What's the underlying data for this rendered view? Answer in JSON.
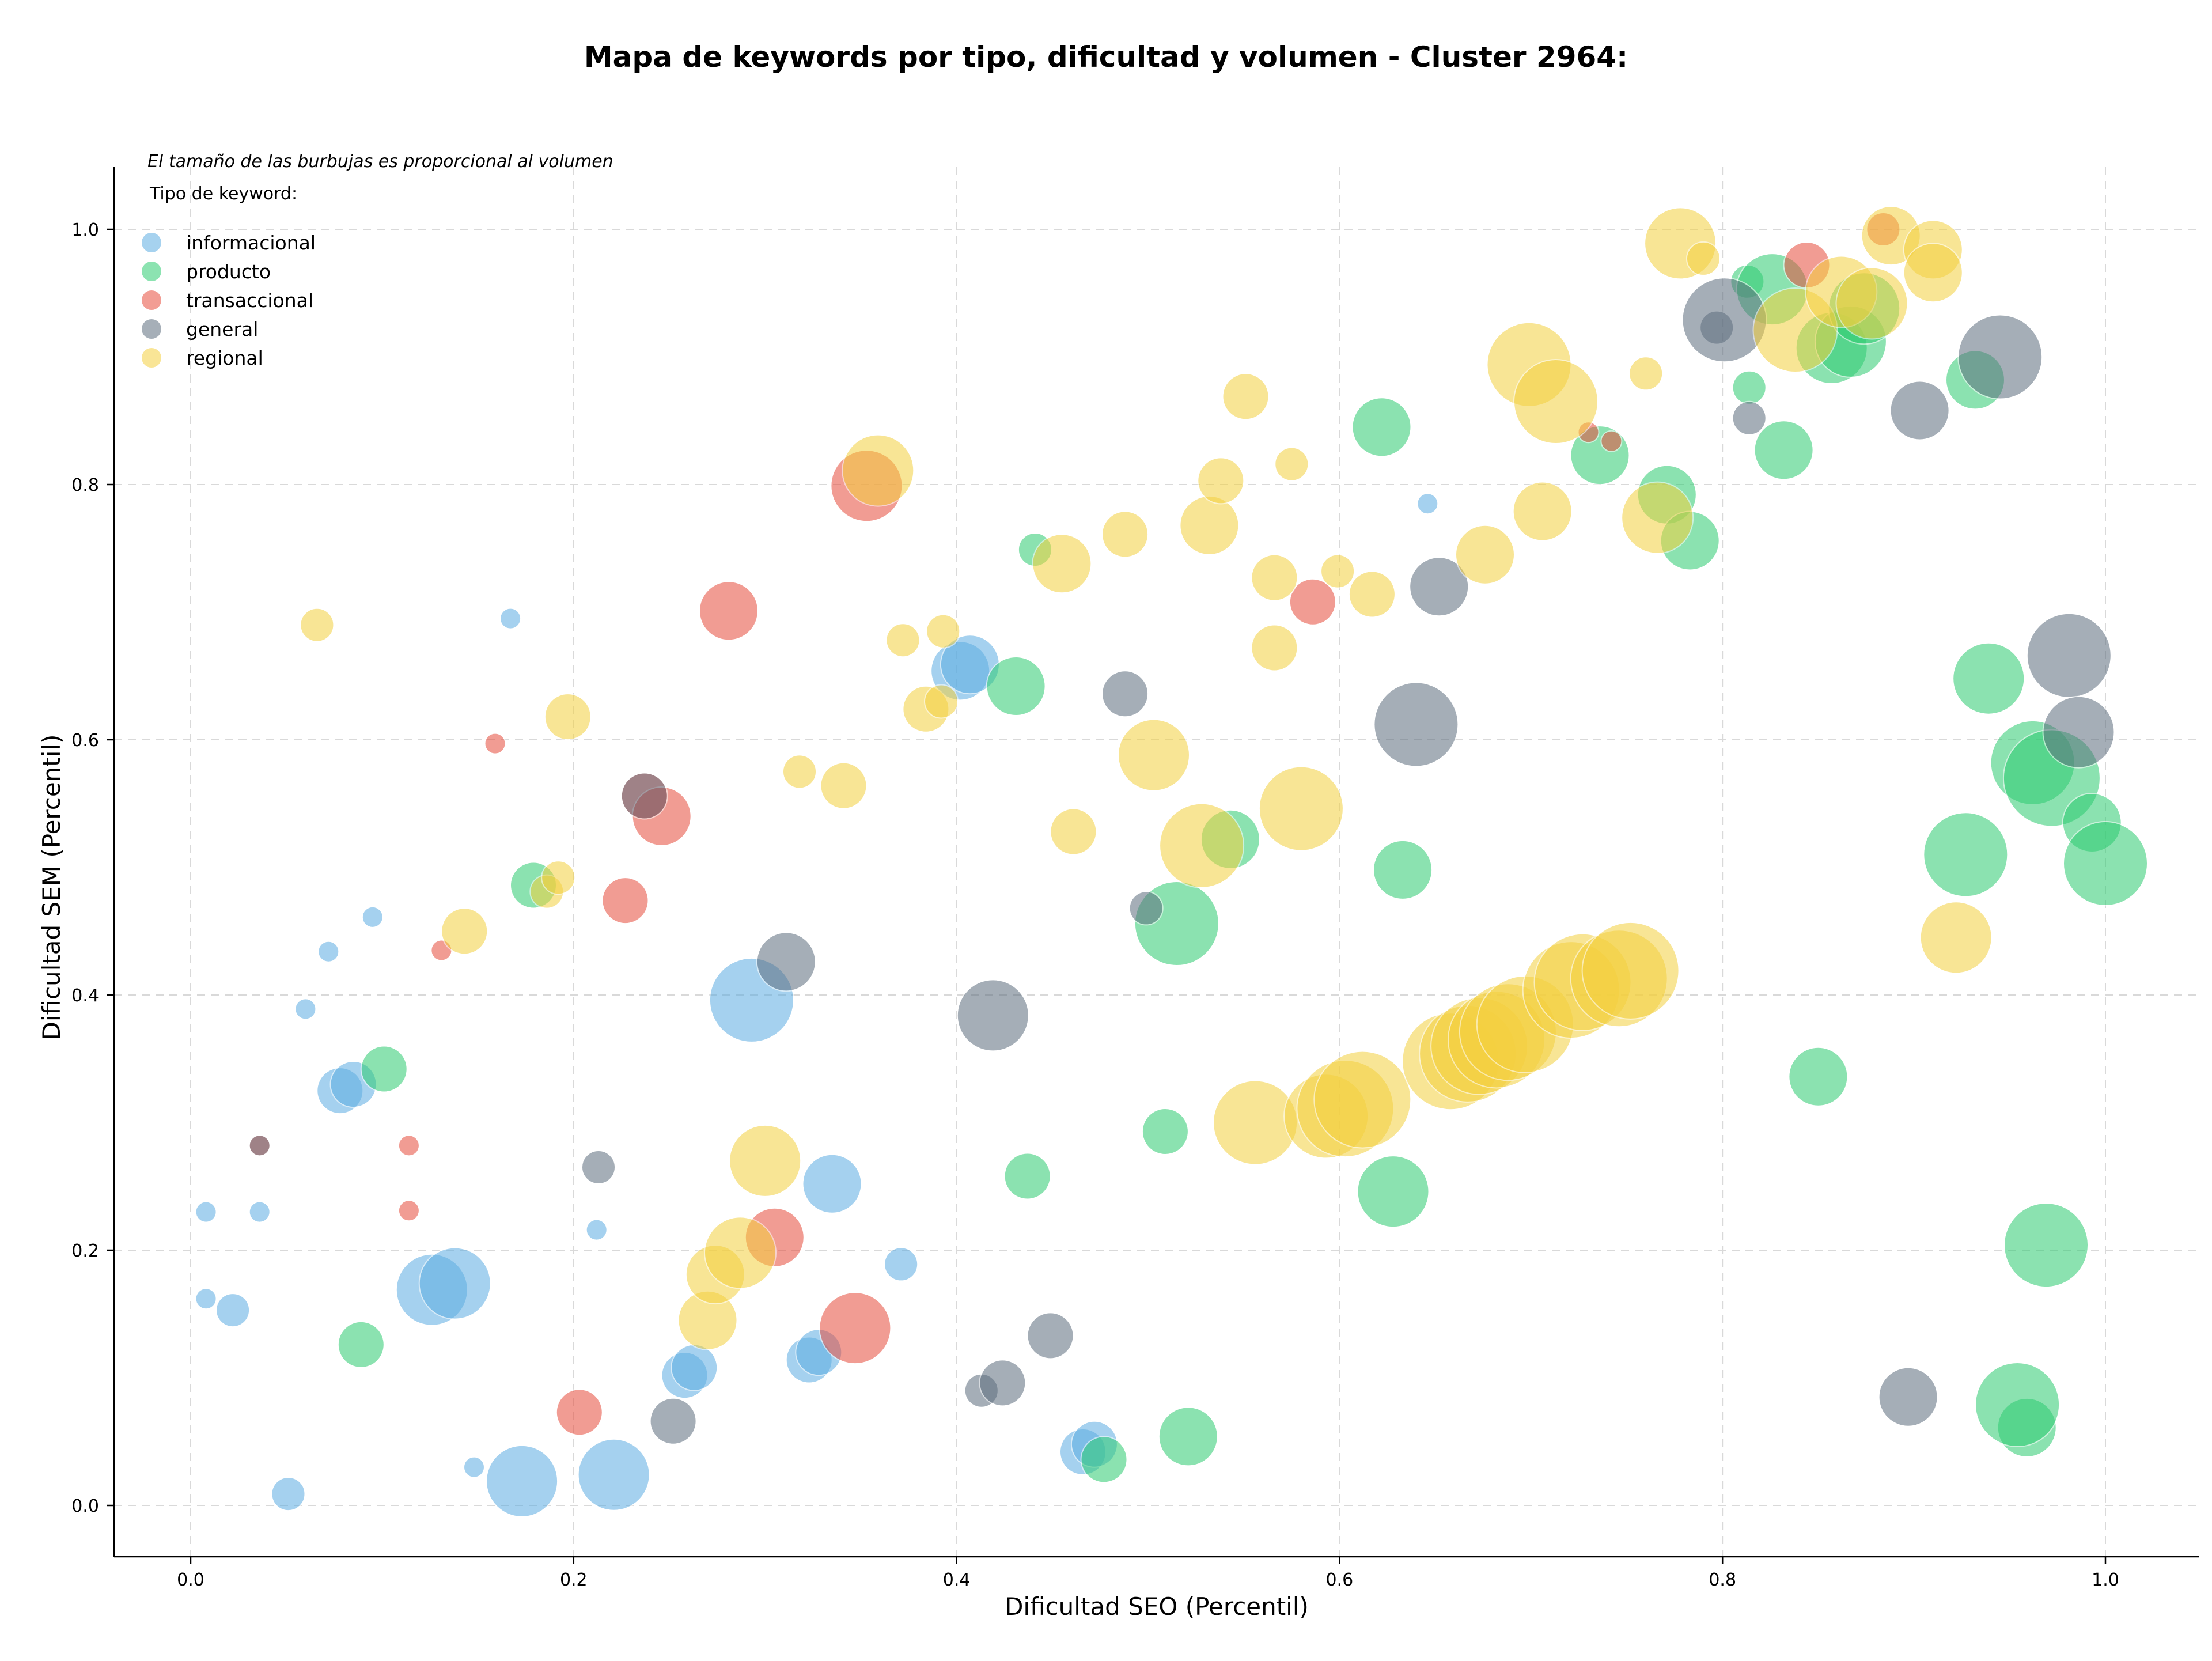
{
  "chart_data": {
    "type": "scatter",
    "title": "Mapa de keywords por tipo, dificultad y volumen - Cluster 2964:",
    "xlabel": "Dificultad SEO (Percentil)",
    "ylabel": "Dificultad SEM (Percentil)",
    "xlim": [
      -0.04,
      1.05
    ],
    "ylim": [
      -0.04,
      1.05
    ],
    "xticks": [
      0.0,
      0.2,
      0.4,
      0.6,
      0.8,
      1.0
    ],
    "yticks": [
      0.0,
      0.2,
      0.4,
      0.6,
      0.8,
      1.0
    ],
    "xtick_labels": [
      "0.0",
      "0.2",
      "0.4",
      "0.6",
      "0.8",
      "1.0"
    ],
    "ytick_labels": [
      "0.0",
      "0.2",
      "0.4",
      "0.6",
      "0.8",
      "1.0"
    ],
    "grid": true,
    "legend_title": "Tipo de keyword:",
    "legend_placement": "top-left",
    "note": "El tamaño de las burbujas es proporcional al volumen",
    "series": [
      {
        "name": "informacional",
        "color": "#5DADE2",
        "points": [
          [
            0.008,
            0.23,
            1
          ],
          [
            0.036,
            0.23,
            1
          ],
          [
            0.008,
            0.162,
            1
          ],
          [
            0.022,
            0.153,
            2
          ],
          [
            0.051,
            0.009,
            2
          ],
          [
            0.06,
            0.389,
            1
          ],
          [
            0.072,
            0.434,
            1
          ],
          [
            0.095,
            0.461,
            1
          ],
          [
            0.078,
            0.325,
            3
          ],
          [
            0.085,
            0.33,
            3
          ],
          [
            0.126,
            0.169,
            5
          ],
          [
            0.138,
            0.174,
            5
          ],
          [
            0.148,
            0.03,
            1
          ],
          [
            0.173,
            0.019,
            5
          ],
          [
            0.167,
            0.695,
            1
          ],
          [
            0.212,
            0.216,
            1
          ],
          [
            0.221,
            0.024,
            5
          ],
          [
            0.258,
            0.102,
            3
          ],
          [
            0.263,
            0.108,
            3
          ],
          [
            0.293,
            0.396,
            6
          ],
          [
            0.323,
            0.114,
            3
          ],
          [
            0.328,
            0.12,
            3
          ],
          [
            0.335,
            0.252,
            4
          ],
          [
            0.371,
            0.189,
            2
          ],
          [
            0.402,
            0.654,
            4
          ],
          [
            0.407,
            0.659,
            4
          ],
          [
            0.466,
            0.042,
            3
          ],
          [
            0.472,
            0.048,
            3
          ],
          [
            0.646,
            0.785,
            1
          ]
        ]
      },
      {
        "name": "producto",
        "color": "#2ECC71",
        "points": [
          [
            0.089,
            0.126,
            3
          ],
          [
            0.101,
            0.342,
            3
          ],
          [
            0.179,
            0.486,
            3
          ],
          [
            0.431,
            0.642,
            4
          ],
          [
            0.441,
            0.749,
            2
          ],
          [
            0.437,
            0.258,
            3
          ],
          [
            0.477,
            0.036,
            3
          ],
          [
            0.509,
            0.293,
            3
          ],
          [
            0.515,
            0.456,
            6
          ],
          [
            0.543,
            0.522,
            4
          ],
          [
            0.521,
            0.054,
            4
          ],
          [
            0.622,
            0.845,
            4
          ],
          [
            0.633,
            0.498,
            4
          ],
          [
            0.628,
            0.246,
            5
          ],
          [
            0.736,
            0.823,
            4
          ],
          [
            0.771,
            0.792,
            4
          ],
          [
            0.783,
            0.756,
            4
          ],
          [
            0.813,
            0.959,
            2
          ],
          [
            0.814,
            0.876,
            2
          ],
          [
            0.826,
            0.953,
            5
          ],
          [
            0.832,
            0.827,
            4
          ],
          [
            0.85,
            0.336,
            4
          ],
          [
            0.857,
            0.907,
            5
          ],
          [
            0.867,
            0.912,
            5
          ],
          [
            0.874,
            0.938,
            5
          ],
          [
            0.932,
            0.882,
            4
          ],
          [
            0.939,
            0.648,
            5
          ],
          [
            0.927,
            0.51,
            6
          ],
          [
            0.969,
            0.204,
            6
          ],
          [
            0.959,
            0.061,
            4
          ],
          [
            0.954,
            0.079,
            6
          ],
          [
            0.962,
            0.582,
            6
          ],
          [
            0.972,
            0.57,
            7
          ],
          [
            0.993,
            0.535,
            4
          ],
          [
            1.0,
            0.503,
            6
          ]
        ]
      },
      {
        "name": "transaccional",
        "color": "#E74C3C",
        "points": [
          [
            0.036,
            0.282,
            1
          ],
          [
            0.114,
            0.282,
            1
          ],
          [
            0.114,
            0.231,
            1
          ],
          [
            0.131,
            0.435,
            1
          ],
          [
            0.159,
            0.597,
            1
          ],
          [
            0.203,
            0.073,
            3
          ],
          [
            0.227,
            0.474,
            3
          ],
          [
            0.237,
            0.556,
            3
          ],
          [
            0.246,
            0.54,
            4
          ],
          [
            0.281,
            0.701,
            4
          ],
          [
            0.305,
            0.21,
            4
          ],
          [
            0.347,
            0.139,
            5
          ],
          [
            0.353,
            0.799,
            5
          ],
          [
            0.586,
            0.708,
            3
          ],
          [
            0.73,
            0.841,
            1
          ],
          [
            0.742,
            0.834,
            1
          ],
          [
            0.844,
            0.972,
            3
          ],
          [
            0.884,
            1.0,
            2
          ]
        ]
      },
      {
        "name": "general",
        "color": "#5D6D7E",
        "points": [
          [
            0.036,
            0.282,
            1
          ],
          [
            0.213,
            0.265,
            2
          ],
          [
            0.237,
            0.556,
            3
          ],
          [
            0.252,
            0.066,
            3
          ],
          [
            0.311,
            0.426,
            4
          ],
          [
            0.413,
            0.09,
            2
          ],
          [
            0.424,
            0.096,
            3
          ],
          [
            0.419,
            0.384,
            5
          ],
          [
            0.449,
            0.133,
            3
          ],
          [
            0.488,
            0.636,
            3
          ],
          [
            0.499,
            0.468,
            2
          ],
          [
            0.64,
            0.612,
            6
          ],
          [
            0.652,
            0.72,
            4
          ],
          [
            0.797,
            0.923,
            2
          ],
          [
            0.801,
            0.929,
            6
          ],
          [
            0.814,
            0.852,
            2
          ],
          [
            0.903,
            0.858,
            4
          ],
          [
            0.897,
            0.085,
            4
          ],
          [
            0.945,
            0.9,
            6
          ],
          [
            0.981,
            0.666,
            6
          ],
          [
            0.986,
            0.606,
            5
          ]
        ]
      },
      {
        "name": "regional",
        "color": "#F4D03F",
        "points": [
          [
            0.066,
            0.69,
            2
          ],
          [
            0.143,
            0.45,
            3
          ],
          [
            0.186,
            0.481,
            2
          ],
          [
            0.192,
            0.492,
            2
          ],
          [
            0.197,
            0.618,
            3
          ],
          [
            0.27,
            0.145,
            4
          ],
          [
            0.274,
            0.181,
            4
          ],
          [
            0.287,
            0.198,
            5
          ],
          [
            0.3,
            0.27,
            5
          ],
          [
            0.318,
            0.575,
            2
          ],
          [
            0.341,
            0.564,
            3
          ],
          [
            0.359,
            0.811,
            5
          ],
          [
            0.372,
            0.678,
            2
          ],
          [
            0.384,
            0.624,
            3
          ],
          [
            0.392,
            0.63,
            2
          ],
          [
            0.393,
            0.685,
            2
          ],
          [
            0.455,
            0.738,
            4
          ],
          [
            0.461,
            0.528,
            3
          ],
          [
            0.488,
            0.761,
            3
          ],
          [
            0.503,
            0.588,
            5
          ],
          [
            0.528,
            0.517,
            6
          ],
          [
            0.532,
            0.768,
            4
          ],
          [
            0.538,
            0.803,
            3
          ],
          [
            0.551,
            0.869,
            3
          ],
          [
            0.556,
            0.3,
            6
          ],
          [
            0.566,
            0.727,
            3
          ],
          [
            0.566,
            0.672,
            3
          ],
          [
            0.575,
            0.816,
            2
          ],
          [
            0.58,
            0.546,
            6
          ],
          [
            0.593,
            0.305,
            6
          ],
          [
            0.599,
            0.732,
            2
          ],
          [
            0.603,
            0.311,
            7
          ],
          [
            0.612,
            0.318,
            7
          ],
          [
            0.617,
            0.714,
            3
          ],
          [
            0.658,
            0.348,
            7
          ],
          [
            0.667,
            0.354,
            7
          ],
          [
            0.673,
            0.36,
            7
          ],
          [
            0.682,
            0.365,
            7
          ],
          [
            0.688,
            0.371,
            7
          ],
          [
            0.697,
            0.377,
            7
          ],
          [
            0.676,
            0.745,
            4
          ],
          [
            0.699,
            0.894,
            6
          ],
          [
            0.706,
            0.779,
            4
          ],
          [
            0.713,
            0.865,
            6
          ],
          [
            0.721,
            0.404,
            7
          ],
          [
            0.727,
            0.41,
            7
          ],
          [
            0.746,
            0.413,
            7
          ],
          [
            0.752,
            0.419,
            7
          ],
          [
            0.76,
            0.887,
            2
          ],
          [
            0.766,
            0.774,
            5
          ],
          [
            0.778,
            0.989,
            5
          ],
          [
            0.79,
            0.977,
            2
          ],
          [
            0.838,
            0.921,
            6
          ],
          [
            0.862,
            0.951,
            5
          ],
          [
            0.878,
            0.942,
            5
          ],
          [
            0.888,
            0.995,
            4
          ],
          [
            0.91,
            0.984,
            4
          ],
          [
            0.91,
            0.966,
            4
          ],
          [
            0.922,
            0.445,
            5
          ]
        ]
      }
    ]
  }
}
